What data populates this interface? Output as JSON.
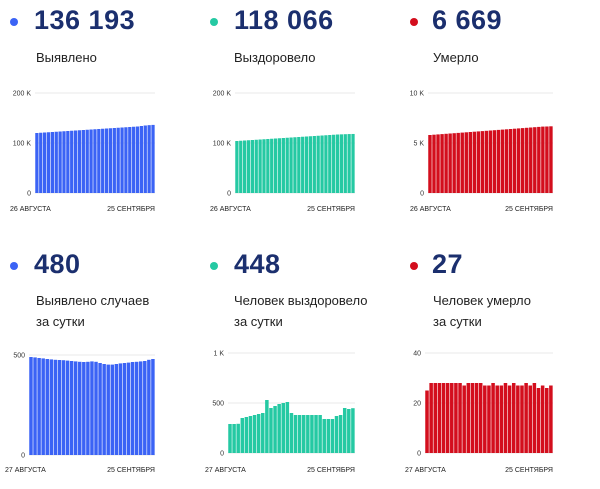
{
  "panels": [
    {
      "value": "136 193",
      "label1": "Выявлено",
      "label2": "",
      "color": "#3b63f5"
    },
    {
      "value": "118 066",
      "label1": "Выздоровело",
      "label2": "",
      "color": "#25c9a3"
    },
    {
      "value": "6 669",
      "label1": "Умерло",
      "label2": "",
      "color": "#d30e1d"
    },
    {
      "value": "480",
      "label1": "Выявлено случаев",
      "label2": "за сутки",
      "color": "#3b63f5"
    },
    {
      "value": "448",
      "label1": "Человек выздоровело",
      "label2": "за сутки",
      "color": "#25c9a3"
    },
    {
      "value": "27",
      "label1": "Человек умерло",
      "label2": "за сутки",
      "color": "#d30e1d"
    }
  ],
  "chart_data": [
    {
      "type": "bar",
      "title": "Выявлено",
      "x_start": "26 АВГУСТА",
      "x_end": "25 СЕНТЯБРЯ",
      "ylim": [
        0,
        200000
      ],
      "yticks": [
        "200 K",
        "100 K",
        "0"
      ],
      "color": "#3b63f5",
      "values": [
        120000,
        120500,
        121000,
        121500,
        122000,
        122500,
        123000,
        123500,
        124000,
        124500,
        125000,
        125500,
        126000,
        126500,
        127000,
        127500,
        128000,
        128500,
        129000,
        129500,
        130000,
        130500,
        131000,
        131500,
        132000,
        132500,
        133000,
        134000,
        135000,
        135700,
        136193
      ]
    },
    {
      "type": "bar",
      "title": "Выздоровело",
      "x_start": "26 АВГУСТА",
      "x_end": "25 СЕНТЯБРЯ",
      "ylim": [
        0,
        200000
      ],
      "yticks": [
        "200 K",
        "100 K",
        "0"
      ],
      "color": "#25c9a3",
      "values": [
        104000,
        104500,
        105000,
        105500,
        106000,
        106500,
        107000,
        107500,
        108000,
        108500,
        109000,
        109500,
        110000,
        110500,
        111000,
        111500,
        112000,
        112500,
        113000,
        113500,
        114000,
        114500,
        115000,
        115500,
        116000,
        116500,
        117000,
        117300,
        117600,
        117900,
        118066
      ]
    },
    {
      "type": "bar",
      "title": "Умерло",
      "x_start": "26 АВГУСТА",
      "x_end": "25 СЕНТЯБРЯ",
      "ylim": [
        0,
        10000
      ],
      "yticks": [
        "10 K",
        "5 K",
        "0"
      ],
      "color": "#d30e1d",
      "values": [
        5800,
        5830,
        5860,
        5890,
        5920,
        5950,
        5980,
        6010,
        6040,
        6070,
        6100,
        6130,
        6160,
        6190,
        6220,
        6250,
        6280,
        6310,
        6340,
        6370,
        6400,
        6430,
        6460,
        6490,
        6520,
        6550,
        6580,
        6610,
        6640,
        6650,
        6669
      ]
    },
    {
      "type": "bar",
      "title": "Выявлено случаев за сутки",
      "x_start": "27 АВГУСТА",
      "x_end": "25 СЕНТЯБРЯ",
      "ylim": [
        0,
        500
      ],
      "yticks": [
        "500",
        "0"
      ],
      "color": "#3b63f5",
      "values": [
        490,
        488,
        485,
        483,
        480,
        478,
        476,
        475,
        474,
        472,
        470,
        468,
        466,
        465,
        466,
        468,
        466,
        460,
        455,
        452,
        452,
        455,
        458,
        460,
        462,
        465,
        466,
        468,
        470,
        476,
        480
      ]
    },
    {
      "type": "bar",
      "title": "Человек выздоровело за сутки",
      "x_start": "27 АВГУСТА",
      "x_end": "25 СЕНТЯБРЯ",
      "ylim": [
        0,
        1000
      ],
      "yticks": [
        "1 K",
        "500",
        "0"
      ],
      "color": "#25c9a3",
      "values": [
        290,
        290,
        292,
        350,
        360,
        370,
        380,
        390,
        400,
        530,
        450,
        470,
        490,
        500,
        510,
        400,
        380,
        380,
        380,
        380,
        380,
        380,
        380,
        340,
        340,
        340,
        370,
        380,
        450,
        440,
        448
      ]
    },
    {
      "type": "bar",
      "title": "Человек умерло за сутки",
      "x_start": "27 АВГУСТА",
      "x_end": "25 СЕНТЯБРЯ",
      "ylim": [
        0,
        40
      ],
      "yticks": [
        "40",
        "20",
        "0"
      ],
      "color": "#d30e1d",
      "values": [
        25,
        28,
        28,
        28,
        28,
        28,
        28,
        28,
        28,
        27,
        28,
        28,
        28,
        28,
        27,
        27,
        28,
        27,
        27,
        28,
        27,
        28,
        27,
        27,
        28,
        27,
        28,
        26,
        27,
        26,
        27
      ]
    }
  ]
}
